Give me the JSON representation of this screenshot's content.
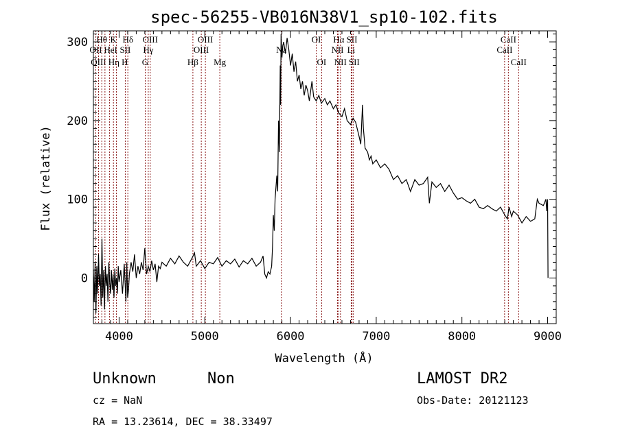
{
  "chart_data": {
    "type": "line",
    "title": "spec-56255-VB016N38V1_sp10-102.fits",
    "xlabel": "Wavelength (Å)",
    "ylabel": "Flux (relative)",
    "xlim": [
      3700,
      9100
    ],
    "ylim": [
      -58,
      314
    ],
    "xticks": [
      4000,
      5000,
      6000,
      7000,
      8000,
      9000
    ],
    "xtick_labels": [
      "4000",
      "5000",
      "6000",
      "7000",
      "8000",
      "9000"
    ],
    "yticks": [
      0,
      100,
      200,
      300
    ],
    "ytick_labels": [
      "0",
      "100",
      "200",
      "300"
    ],
    "grid": false,
    "line_color": "#000000",
    "marker_color": "#8b1a1a",
    "spectrum": [
      [
        3700,
        10
      ],
      [
        3710,
        -30
      ],
      [
        3720,
        20
      ],
      [
        3730,
        -45
      ],
      [
        3740,
        15
      ],
      [
        3750,
        -20
      ],
      [
        3760,
        30
      ],
      [
        3770,
        -10
      ],
      [
        3780,
        5
      ],
      [
        3790,
        -35
      ],
      [
        3800,
        50
      ],
      [
        3810,
        -25
      ],
      [
        3820,
        10
      ],
      [
        3830,
        -40
      ],
      [
        3840,
        15
      ],
      [
        3850,
        -10
      ],
      [
        3860,
        5
      ],
      [
        3870,
        -30
      ],
      [
        3880,
        20
      ],
      [
        3890,
        -5
      ],
      [
        3900,
        -20
      ],
      [
        3910,
        10
      ],
      [
        3920,
        -15
      ],
      [
        3930,
        5
      ],
      [
        3940,
        -25
      ],
      [
        3950,
        12
      ],
      [
        3960,
        -10
      ],
      [
        3970,
        0
      ],
      [
        3980,
        -20
      ],
      [
        3990,
        15
      ],
      [
        4000,
        -5
      ],
      [
        4020,
        10
      ],
      [
        4040,
        -20
      ],
      [
        4060,
        18
      ],
      [
        4080,
        -30
      ],
      [
        4090,
        20
      ],
      [
        4100,
        -25
      ],
      [
        4110,
        -15
      ],
      [
        4120,
        5
      ],
      [
        4140,
        20
      ],
      [
        4160,
        8
      ],
      [
        4180,
        30
      ],
      [
        4200,
        0
      ],
      [
        4220,
        15
      ],
      [
        4240,
        5
      ],
      [
        4260,
        20
      ],
      [
        4280,
        10
      ],
      [
        4300,
        38
      ],
      [
        4320,
        5
      ],
      [
        4340,
        15
      ],
      [
        4360,
        8
      ],
      [
        4380,
        22
      ],
      [
        4400,
        10
      ],
      [
        4420,
        18
      ],
      [
        4440,
        -5
      ],
      [
        4460,
        15
      ],
      [
        4480,
        12
      ],
      [
        4500,
        20
      ],
      [
        4550,
        15
      ],
      [
        4600,
        25
      ],
      [
        4650,
        18
      ],
      [
        4700,
        28
      ],
      [
        4750,
        20
      ],
      [
        4800,
        15
      ],
      [
        4850,
        25
      ],
      [
        4880,
        32
      ],
      [
        4900,
        15
      ],
      [
        4950,
        22
      ],
      [
        5000,
        12
      ],
      [
        5050,
        20
      ],
      [
        5100,
        18
      ],
      [
        5150,
        26
      ],
      [
        5200,
        15
      ],
      [
        5250,
        22
      ],
      [
        5300,
        18
      ],
      [
        5350,
        24
      ],
      [
        5400,
        14
      ],
      [
        5450,
        22
      ],
      [
        5500,
        18
      ],
      [
        5550,
        25
      ],
      [
        5600,
        15
      ],
      [
        5650,
        20
      ],
      [
        5680,
        28
      ],
      [
        5700,
        5
      ],
      [
        5720,
        0
      ],
      [
        5740,
        8
      ],
      [
        5760,
        5
      ],
      [
        5780,
        15
      ],
      [
        5790,
        40
      ],
      [
        5800,
        80
      ],
      [
        5810,
        60
      ],
      [
        5820,
        100
      ],
      [
        5840,
        130
      ],
      [
        5850,
        110
      ],
      [
        5860,
        200
      ],
      [
        5870,
        160
      ],
      [
        5880,
        270
      ],
      [
        5885,
        220
      ],
      [
        5890,
        310
      ],
      [
        5900,
        280
      ],
      [
        5910,
        295
      ],
      [
        5920,
        300
      ],
      [
        5940,
        285
      ],
      [
        5960,
        305
      ],
      [
        5980,
        290
      ],
      [
        6000,
        270
      ],
      [
        6020,
        285
      ],
      [
        6040,
        262
      ],
      [
        6060,
        275
      ],
      [
        6080,
        250
      ],
      [
        6100,
        258
      ],
      [
        6120,
        240
      ],
      [
        6140,
        250
      ],
      [
        6160,
        232
      ],
      [
        6180,
        245
      ],
      [
        6200,
        238
      ],
      [
        6220,
        225
      ],
      [
        6250,
        250
      ],
      [
        6270,
        230
      ],
      [
        6300,
        225
      ],
      [
        6330,
        232
      ],
      [
        6360,
        222
      ],
      [
        6400,
        228
      ],
      [
        6430,
        220
      ],
      [
        6460,
        225
      ],
      [
        6500,
        215
      ],
      [
        6530,
        220
      ],
      [
        6560,
        210
      ],
      [
        6600,
        205
      ],
      [
        6630,
        215
      ],
      [
        6660,
        200
      ],
      [
        6700,
        195
      ],
      [
        6730,
        203
      ],
      [
        6760,
        198
      ],
      [
        6800,
        180
      ],
      [
        6820,
        170
      ],
      [
        6840,
        220
      ],
      [
        6850,
        190
      ],
      [
        6870,
        165
      ],
      [
        6900,
        160
      ],
      [
        6920,
        150
      ],
      [
        6940,
        155
      ],
      [
        6960,
        145
      ],
      [
        7000,
        150
      ],
      [
        7050,
        140
      ],
      [
        7100,
        145
      ],
      [
        7150,
        138
      ],
      [
        7200,
        125
      ],
      [
        7250,
        130
      ],
      [
        7300,
        120
      ],
      [
        7350,
        125
      ],
      [
        7400,
        110
      ],
      [
        7450,
        125
      ],
      [
        7500,
        118
      ],
      [
        7550,
        120
      ],
      [
        7600,
        128
      ],
      [
        7620,
        95
      ],
      [
        7650,
        122
      ],
      [
        7700,
        115
      ],
      [
        7750,
        120
      ],
      [
        7800,
        110
      ],
      [
        7850,
        118
      ],
      [
        7900,
        108
      ],
      [
        7950,
        100
      ],
      [
        8000,
        102
      ],
      [
        8050,
        98
      ],
      [
        8100,
        95
      ],
      [
        8150,
        100
      ],
      [
        8200,
        90
      ],
      [
        8250,
        88
      ],
      [
        8300,
        92
      ],
      [
        8350,
        88
      ],
      [
        8400,
        85
      ],
      [
        8450,
        90
      ],
      [
        8500,
        80
      ],
      [
        8530,
        75
      ],
      [
        8550,
        90
      ],
      [
        8580,
        78
      ],
      [
        8600,
        85
      ],
      [
        8650,
        80
      ],
      [
        8700,
        70
      ],
      [
        8750,
        78
      ],
      [
        8800,
        72
      ],
      [
        8850,
        75
      ],
      [
        8880,
        100
      ],
      [
        8900,
        95
      ],
      [
        8950,
        92
      ],
      [
        8980,
        100
      ],
      [
        8990,
        85
      ],
      [
        9000,
        100
      ],
      [
        9005,
        0
      ]
    ],
    "line_markers": [
      {
        "label": "Hθ",
        "wave": 3798,
        "row": 1
      },
      {
        "label": "K",
        "wave": 3934,
        "row": 1
      },
      {
        "label": "Hδ",
        "wave": 4102,
        "row": 1
      },
      {
        "label": "OIII",
        "wave": 4363,
        "row": 1
      },
      {
        "label": "OIII",
        "wave": 5007,
        "row": 1
      },
      {
        "label": "OI",
        "wave": 6300,
        "row": 1
      },
      {
        "label": "Hα",
        "wave": 6563,
        "row": 1
      },
      {
        "label": "SII",
        "wave": 6716,
        "row": 1
      },
      {
        "label": "CaII",
        "wave": 8542,
        "row": 1
      },
      {
        "label": "OII",
        "wave": 3727,
        "row": 2
      },
      {
        "label": "HeI",
        "wave": 3889,
        "row": 2
      },
      {
        "label": "SII",
        "wave": 4072,
        "row": 2
      },
      {
        "label": "Hγ",
        "wave": 4340,
        "row": 2
      },
      {
        "label": "OIII",
        "wave": 4959,
        "row": 2
      },
      {
        "label": "Na",
        "wave": 5893,
        "row": 2
      },
      {
        "label": "NII",
        "wave": 6548,
        "row": 2
      },
      {
        "label": "Li",
        "wave": 6708,
        "row": 2
      },
      {
        "label": "CaII",
        "wave": 8498,
        "row": 2
      },
      {
        "label": "OIII",
        "wave": 3760,
        "row": 3
      },
      {
        "label": "Hη",
        "wave": 3835,
        "row": 3
      },
      {
        "label": "H",
        "wave": 3968,
        "row": 3
      },
      {
        "label": "G",
        "wave": 4305,
        "row": 3
      },
      {
        "label": "Hβ",
        "wave": 4861,
        "row": 3
      },
      {
        "label": "Mg",
        "wave": 5175,
        "row": 3
      },
      {
        "label": "OI",
        "wave": 6363,
        "row": 3
      },
      {
        "label": "NII",
        "wave": 6583,
        "row": 3
      },
      {
        "label": "SII",
        "wave": 6731,
        "row": 3
      },
      {
        "label": "CaII",
        "wave": 8662,
        "row": 3
      }
    ]
  },
  "info": {
    "class": "Unknown",
    "subclass": "Non",
    "survey": "LAMOST DR2",
    "cz": "cz = NaN",
    "obs_date": "Obs-Date: 20121123",
    "coords": "RA =  13.23614, DEC =  38.33497"
  }
}
